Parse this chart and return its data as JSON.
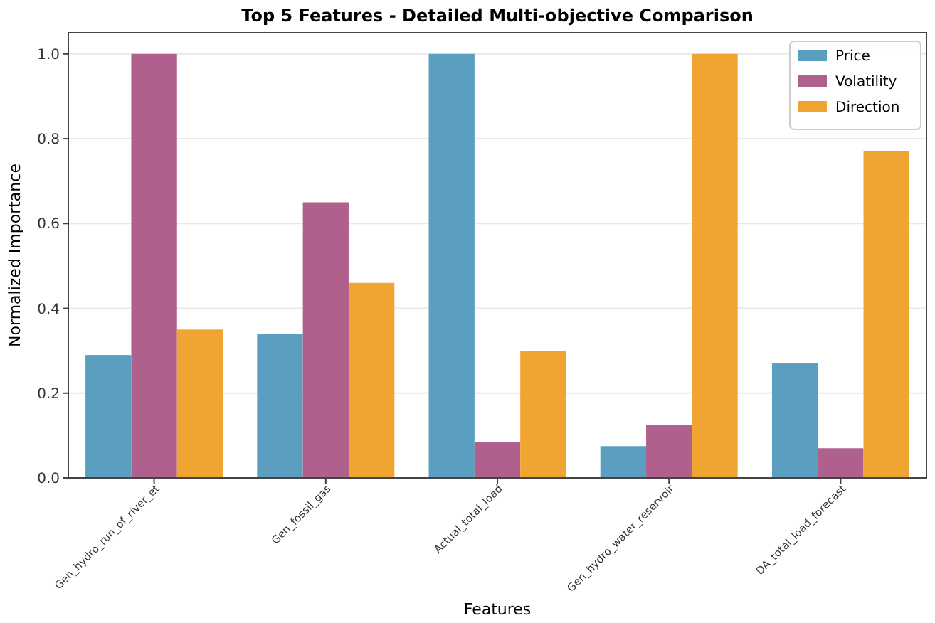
{
  "chart_data": {
    "type": "bar",
    "title": "Top 5 Features - Detailed Multi-objective Comparison",
    "xlabel": "Features",
    "ylabel": "Normalized Importance",
    "categories": [
      "Gen_hydro_run_of_river_et",
      "Gen_fossil_gas",
      "Actual_total_load",
      "Gen_hydro_water_reservoir",
      "DA_total_load_forecast"
    ],
    "series": [
      {
        "name": "Price",
        "color": "#5a9ec0",
        "values": [
          0.29,
          0.34,
          1.0,
          0.075,
          0.27
        ]
      },
      {
        "name": "Volatility",
        "color": "#b0608c",
        "values": [
          1.0,
          0.65,
          0.085,
          0.125,
          0.07
        ]
      },
      {
        "name": "Direction",
        "color": "#f0a432",
        "values": [
          0.35,
          0.46,
          0.3,
          1.0,
          0.77
        ]
      }
    ],
    "ylim": [
      0,
      1.05
    ],
    "yticks": [
      {
        "value": 0,
        "label": "0.0"
      },
      {
        "value": 0.2,
        "label": "0.2"
      },
      {
        "value": 0.4,
        "label": "0.4"
      },
      {
        "value": 0.6,
        "label": "0.6"
      },
      {
        "value": 0.8,
        "label": "0.8"
      },
      {
        "value": 1,
        "label": "1.0"
      }
    ],
    "grid": "y",
    "legend": "top right"
  }
}
